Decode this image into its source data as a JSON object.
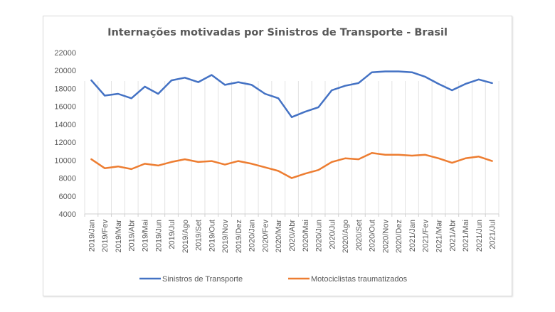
{
  "chart_data": {
    "type": "line",
    "title": "Internações motivadas por Sinistros de Transporte - Brasil",
    "xlabel": "",
    "ylabel": "",
    "ylim": [
      4000,
      22000
    ],
    "yticks": [
      4000,
      6000,
      8000,
      10000,
      12000,
      14000,
      16000,
      18000,
      20000,
      22000
    ],
    "grid": "vertical",
    "legend_position": "bottom",
    "categories": [
      "2019/Jan",
      "2019/Fev",
      "2019/Mar",
      "2019/Abr",
      "2019/Mai",
      "2019/Jun",
      "2019/Jul",
      "2019/Ago",
      "2019/Set",
      "2019/Out",
      "2019/Nov",
      "2019/Dez",
      "2020/Jan",
      "2020/Fev",
      "2020/Mar",
      "2020/Abr",
      "2020/Mai",
      "2020/Jun",
      "2020/Jul",
      "2020/Ago",
      "2020/Set",
      "2020/Out",
      "2020/Nov",
      "2020/Dez",
      "2021/Jan",
      "2021/Fev",
      "2021/Mar",
      "2021/Abr",
      "2021/Mai",
      "2021/Jun",
      "2021/Jul"
    ],
    "series": [
      {
        "name": "Sinistros de Transporte",
        "color": "#4472c4",
        "values": [
          18900,
          17200,
          17400,
          16900,
          18200,
          17400,
          18900,
          19200,
          18700,
          19500,
          18400,
          18700,
          18400,
          17400,
          16900,
          14800,
          15400,
          15900,
          17800,
          18300,
          18600,
          19800,
          19900,
          19900,
          19800,
          19300,
          18500,
          17800,
          18500,
          19000,
          18600
        ]
      },
      {
        "name": "Motociclistas traumatizados",
        "color": "#ed7d31",
        "values": [
          10100,
          9100,
          9300,
          9000,
          9600,
          9400,
          9800,
          10100,
          9800,
          9900,
          9500,
          9900,
          9600,
          9200,
          8800,
          8000,
          8500,
          8900,
          9800,
          10200,
          10100,
          10800,
          10600,
          10600,
          10500,
          10600,
          10200,
          9700,
          10200,
          10400,
          9900
        ]
      }
    ]
  }
}
